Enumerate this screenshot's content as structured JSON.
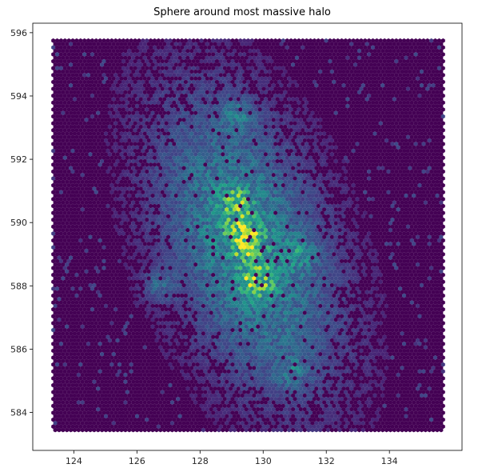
{
  "chart_data": {
    "type": "heatmap",
    "subtype": "hexbin",
    "title": "Sphere around most massive halo",
    "xlabel": "",
    "ylabel": "",
    "xlim": [
      122.7,
      136.3
    ],
    "ylim": [
      582.8,
      596.3
    ],
    "x_ticks": [
      124,
      126,
      128,
      130,
      132,
      134
    ],
    "y_ticks": [
      584,
      586,
      588,
      590,
      592,
      594,
      596
    ],
    "colormap": "viridis",
    "background_bin_color": "#440154",
    "hex_extent": {
      "x": [
        123.35,
        135.7
      ],
      "y": [
        583.35,
        595.75
      ]
    },
    "density_peaks": [
      {
        "x": 129.4,
        "y": 589.5,
        "level": 1.0
      },
      {
        "x": 129.8,
        "y": 588.1,
        "level": 0.8
      },
      {
        "x": 129.1,
        "y": 590.6,
        "level": 0.6
      },
      {
        "x": 130.9,
        "y": 585.3,
        "level": 0.45
      },
      {
        "x": 129.2,
        "y": 593.4,
        "level": 0.45
      },
      {
        "x": 126.7,
        "y": 588.0,
        "level": 0.45
      },
      {
        "x": 131.2,
        "y": 589.0,
        "level": 0.4
      }
    ],
    "grid": false,
    "legend": "none"
  }
}
